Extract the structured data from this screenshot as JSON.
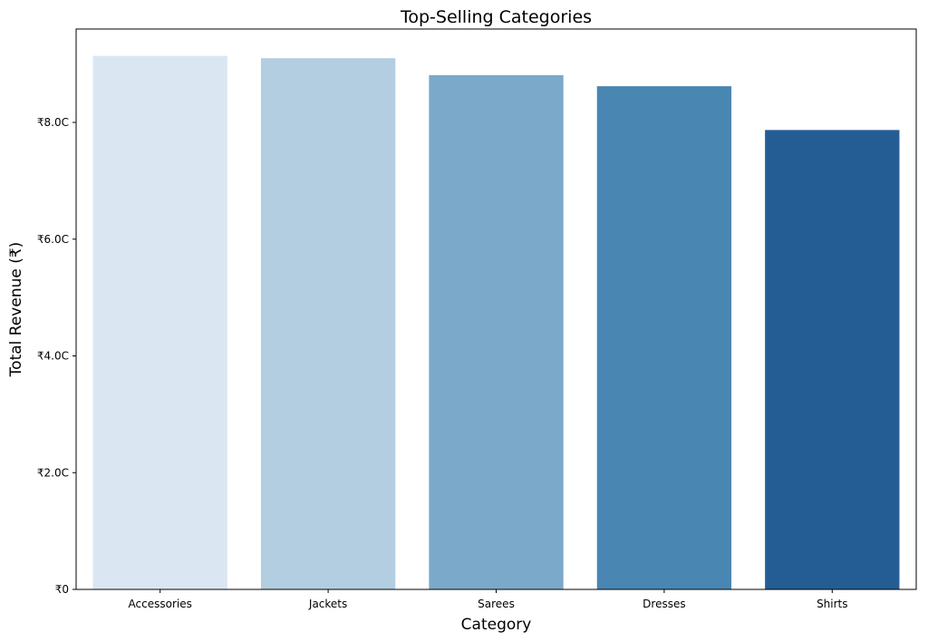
{
  "chart_data": {
    "type": "bar",
    "title": "Top-Selling Categories",
    "xlabel": "Category",
    "ylabel": "Total Revenue (₹)",
    "categories": [
      "Accessories",
      "Jackets",
      "Sarees",
      "Dresses",
      "Shirts"
    ],
    "values": [
      9.14,
      9.1,
      8.81,
      8.62,
      7.87
    ],
    "value_unit": "₹ crore",
    "ylim": [
      0,
      9.6
    ],
    "yticks": [
      0,
      2,
      4,
      6,
      8
    ],
    "ytick_labels": [
      "₹0",
      "₹2.0C",
      "₹4.0C",
      "₹6.0C",
      "₹8.0C"
    ],
    "bar_colors": [
      "#dae7f3",
      "#b3cee1",
      "#7aa9c9",
      "#4a86b2",
      "#235d94"
    ],
    "grid": false,
    "legend": "none"
  }
}
